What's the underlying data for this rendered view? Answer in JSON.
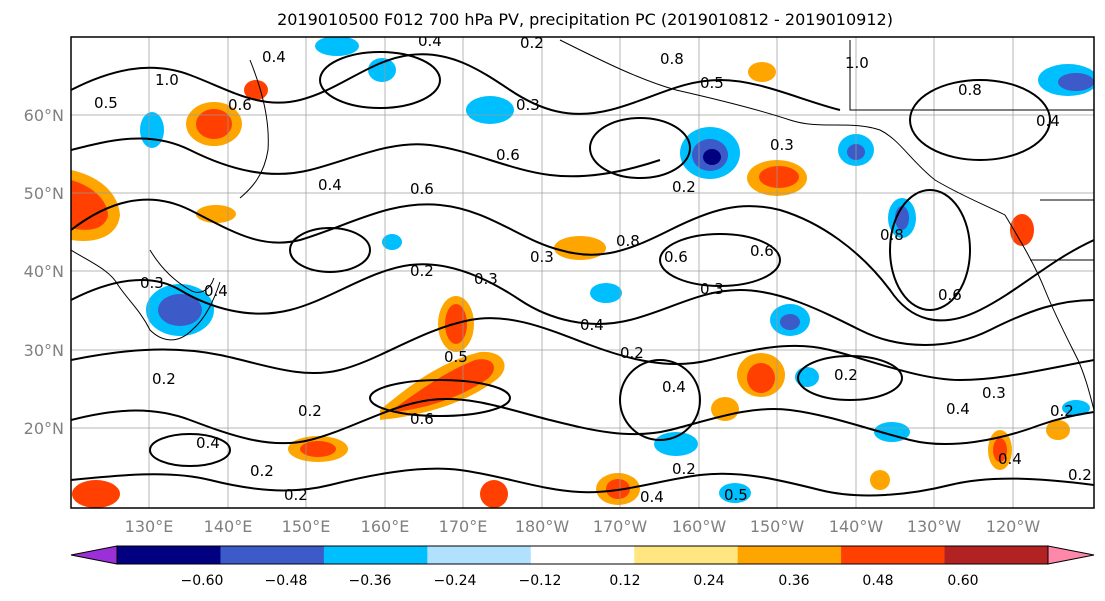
{
  "title": "2019010500 F012 700 hPa PV, precipitation PC (2019010812 - 2019010912)",
  "map": {
    "lat_labels": [
      "60°N",
      "50°N",
      "40°N",
      "30°N",
      "20°N"
    ],
    "lon_labels": [
      "130°E",
      "140°E",
      "150°E",
      "160°E",
      "170°E",
      "180°W",
      "170°W",
      "160°W",
      "150°W",
      "140°W",
      "130°W",
      "120°W"
    ],
    "contour_labels": [
      "0.4",
      "1.0",
      "0.5",
      "0.6",
      "0.4",
      "0.2",
      "0.3",
      "0.8",
      "0.5",
      "0.4",
      "1.0",
      "0.8",
      "0.4",
      "0.6",
      "0.6",
      "0.3",
      "0.3",
      "0.2",
      "0.2",
      "0.4",
      "0.6",
      "0.2",
      "0.3",
      "0.3",
      "0.8",
      "0.6",
      "0.3",
      "0.4",
      "0.2",
      "0.5",
      "0.6",
      "0.8",
      "0.2",
      "0.4",
      "0.2",
      "0.2",
      "0.4",
      "0.3",
      "0.6",
      "0.2",
      "0.4",
      "0.2",
      "0.2",
      "0.5",
      "0.4",
      "0.2",
      "0.4"
    ]
  },
  "colorbar": {
    "ticks": [
      "−0.60",
      "−0.48",
      "−0.36",
      "−0.24",
      "−0.12",
      "0.12",
      "0.24",
      "0.36",
      "0.48",
      "0.60"
    ],
    "colors": [
      "#9b30d8",
      "#000080",
      "#3c5ac8",
      "#00bfff",
      "#b0e2ff",
      "#ffffff",
      "#ffe680",
      "#ffa500",
      "#ff4000",
      "#b22222",
      "#ff88aa"
    ]
  }
}
